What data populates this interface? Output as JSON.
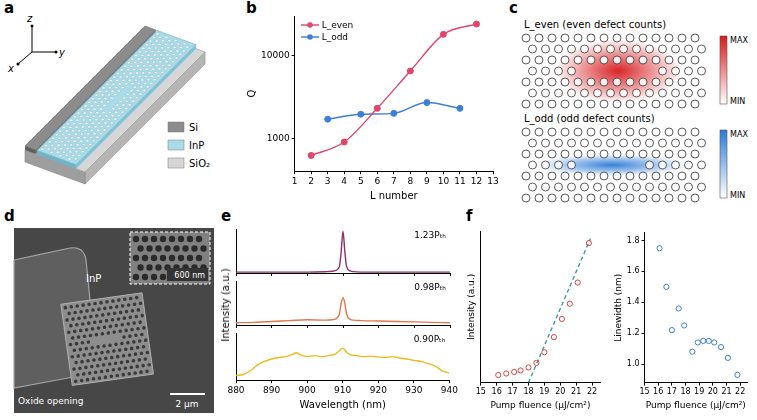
{
  "diagram": {
    "a": {
      "letter": "a",
      "axes": {
        "x": "x",
        "y": "y",
        "z": "z"
      },
      "materials": [
        {
          "name": "Si",
          "color": "#8c8c8c"
        },
        {
          "name": "InP",
          "color": "#a9dcea"
        },
        {
          "name": "SiO₂",
          "color": "#d6d6d6"
        }
      ]
    },
    "c": {
      "letter": "c",
      "modes": [
        {
          "label": "L_even (even defect counts)",
          "color": "#d7191c",
          "max": "MAX",
          "min": "MIN"
        },
        {
          "label": "L_odd (odd defect counts)",
          "color": "#2c7bd6",
          "max": "MAX",
          "min": "MIN"
        }
      ]
    },
    "d": {
      "letter": "d",
      "material": "InP",
      "region": "Oxide opening",
      "scale_bar": "2 μm",
      "inset_scale_bar": "600 nm"
    }
  },
  "chart_data": [
    {
      "panel": "b",
      "type": "line",
      "x_label": "L number",
      "y_label": "Q",
      "log": "y",
      "grid": false,
      "legend": "upper left",
      "xlim": [
        1,
        13
      ],
      "xticks": [
        1,
        2,
        3,
        4,
        5,
        6,
        7,
        8,
        9,
        10,
        11,
        12,
        13
      ],
      "ylim": [
        400,
        30000
      ],
      "yticks": [
        1000,
        10000
      ],
      "series": [
        {
          "name": "L_even",
          "color": "#e0456a",
          "marker": "circle",
          "x": [
            2,
            4,
            6,
            8,
            10,
            12
          ],
          "values": [
            620,
            900,
            2300,
            6500,
            18000,
            24000
          ]
        },
        {
          "name": "L_odd",
          "color": "#3d7fd6",
          "marker": "circle",
          "x": [
            3,
            5,
            7,
            9,
            11
          ],
          "values": [
            1700,
            1950,
            2000,
            2700,
            2300
          ]
        }
      ]
    },
    {
      "panel": "e",
      "type": "line",
      "annotation": "1.23Pₜₕ",
      "y_label": "Intensity (a.u.)",
      "tick_labels": false,
      "color": "#8e2f6f",
      "xlim": [
        880,
        940
      ],
      "xticks": [
        880,
        890,
        900,
        910,
        920,
        930,
        940
      ],
      "ylim": [
        0,
        1
      ],
      "x": [
        880,
        890,
        900,
        905,
        907,
        908,
        909,
        909.5,
        910,
        910.5,
        911,
        912,
        913,
        915,
        920,
        930,
        940
      ],
      "values": [
        0.02,
        0.02,
        0.02,
        0.03,
        0.04,
        0.06,
        0.15,
        0.5,
        0.95,
        0.5,
        0.15,
        0.05,
        0.03,
        0.02,
        0.02,
        0.02,
        0.02
      ]
    },
    {
      "panel": "e",
      "type": "line",
      "annotation": "0.98Pₜₕ",
      "tick_labels": false,
      "color": "#e2774a",
      "xlim": [
        880,
        940
      ],
      "xticks": [
        880,
        890,
        900,
        910,
        920,
        930,
        940
      ],
      "ylim": [
        0,
        1
      ],
      "x": [
        880,
        885,
        890,
        895,
        900,
        905,
        907,
        908,
        909,
        909.5,
        910,
        910.5,
        911,
        912,
        913,
        915,
        920,
        925,
        930,
        935,
        940
      ],
      "values": [
        0.05,
        0.06,
        0.08,
        0.1,
        0.12,
        0.11,
        0.12,
        0.14,
        0.25,
        0.5,
        0.62,
        0.5,
        0.25,
        0.13,
        0.11,
        0.1,
        0.09,
        0.08,
        0.07,
        0.06,
        0.05
      ]
    },
    {
      "panel": "e",
      "type": "line",
      "annotation": "0.90Pₜₕ",
      "tick_labels": "x",
      "x_label": "Wavelength (nm)",
      "color": "#f0b81c",
      "xlim": [
        880,
        940
      ],
      "xticks": [
        880,
        890,
        900,
        910,
        920,
        930,
        940
      ],
      "ylim": [
        0,
        1
      ],
      "x": [
        880,
        882,
        884,
        886,
        888,
        890,
        892,
        894,
        896,
        897,
        898,
        900,
        902,
        904,
        906,
        908,
        909,
        910,
        911,
        912,
        914,
        916,
        918,
        920,
        922,
        924,
        926,
        928,
        930,
        932,
        934,
        936,
        938,
        940
      ],
      "values": [
        0.1,
        0.12,
        0.2,
        0.32,
        0.4,
        0.45,
        0.48,
        0.5,
        0.55,
        0.58,
        0.54,
        0.5,
        0.52,
        0.5,
        0.52,
        0.56,
        0.62,
        0.68,
        0.6,
        0.54,
        0.52,
        0.5,
        0.51,
        0.49,
        0.48,
        0.5,
        0.47,
        0.45,
        0.42,
        0.4,
        0.35,
        0.3,
        0.2,
        0.15
      ]
    },
    {
      "panel": "f",
      "type": "scatter",
      "x_label": "Pump fluence (μJ/cm²)",
      "y_label": "Intensity (a.u.)",
      "tick_labels": "x",
      "xlim": [
        15,
        22.5
      ],
      "xticks": [
        15,
        16,
        17,
        18,
        19,
        20,
        21,
        22
      ],
      "ylim": [
        0,
        1
      ],
      "series": [
        {
          "type": "scatter",
          "color": "#d9453d",
          "marker": "open_circle",
          "x": [
            16.1,
            16.6,
            17.1,
            17.5,
            18.0,
            18.5,
            19.0,
            19.6,
            20.1,
            20.6,
            21.1,
            21.8
          ],
          "values": [
            0.05,
            0.06,
            0.07,
            0.08,
            0.1,
            0.13,
            0.2,
            0.3,
            0.42,
            0.52,
            0.66,
            0.92
          ]
        },
        {
          "type": "line",
          "color": "#3a9aa0",
          "line_style": "dashed",
          "x": [
            18.0,
            21.9
          ],
          "values": [
            0,
            0.95
          ]
        }
      ]
    },
    {
      "panel": "f",
      "type": "scatter",
      "x_label": "Pump fluence (μJ/cm²)",
      "y_label": "Linewidth (nm)",
      "xlim": [
        15,
        22.5
      ],
      "xticks": [
        15,
        16,
        17,
        18,
        19,
        20,
        21,
        22
      ],
      "ylim": [
        0.88,
        1.85
      ],
      "yticks": [
        {
          "value": 1,
          "label": "1.0"
        },
        1.2,
        1.4,
        1.6,
        1.8
      ],
      "series": [
        {
          "type": "scatter",
          "color": "#3d7fd6",
          "marker": "open_circle",
          "x": [
            16.1,
            16.6,
            17.0,
            17.5,
            17.9,
            18.5,
            18.9,
            19.3,
            19.7,
            20.1,
            20.6,
            21.1,
            21.8
          ],
          "values": [
            1.75,
            1.5,
            1.22,
            1.36,
            1.25,
            1.08,
            1.14,
            1.15,
            1.15,
            1.14,
            1.11,
            1.04,
            0.93
          ]
        }
      ]
    }
  ]
}
